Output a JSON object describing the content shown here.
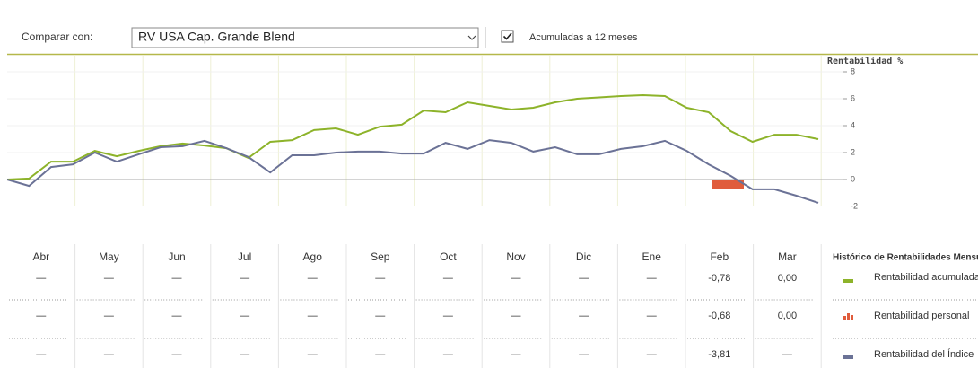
{
  "controls": {
    "compare_label": "Comparar con:",
    "select_value": "RV USA Cap. Grande Blend",
    "checkbox_checked": true,
    "checkbox_label": "Acumuladas a 12 meses"
  },
  "chart_data": {
    "type": "line",
    "y_axis_label": "Rentabilidad %",
    "ylim": [
      -2,
      8
    ],
    "yticks": [
      8,
      6,
      4,
      2,
      0,
      -2
    ],
    "grid": true,
    "series": [
      {
        "name": "Rentabilidad acumulada",
        "color": "#8db32a",
        "values": [
          0,
          0.07,
          1.33,
          1.33,
          2.13,
          1.73,
          2.13,
          2.47,
          2.67,
          2.53,
          2.33,
          1.6,
          2.8,
          2.93,
          3.67,
          3.8,
          3.33,
          3.93,
          4.07,
          5.13,
          5.0,
          5.73,
          5.47,
          5.2,
          5.33,
          5.73,
          6.0,
          6.1,
          6.2,
          6.27,
          6.2,
          5.33,
          5.0,
          3.6,
          2.8,
          3.33,
          3.33,
          3.0
        ]
      },
      {
        "name": "Rentabilidad del Índice",
        "color": "#6b7296",
        "values": [
          0,
          -0.47,
          0.93,
          1.13,
          2.0,
          1.33,
          1.87,
          2.4,
          2.47,
          2.87,
          2.33,
          1.67,
          0.53,
          1.8,
          1.8,
          2.0,
          2.07,
          2.07,
          1.93,
          1.93,
          2.73,
          2.27,
          2.93,
          2.73,
          2.07,
          2.4,
          1.87,
          1.87,
          2.27,
          2.47,
          2.87,
          2.13,
          1.13,
          0.27,
          -0.73,
          -0.73,
          -1.2,
          -1.73
        ]
      }
    ],
    "bar": {
      "name": "Rentabilidad personal",
      "color": "#e05c3c",
      "value": -0.68
    }
  },
  "table": {
    "months": [
      "Abr",
      "May",
      "Jun",
      "Jul",
      "Ago",
      "Sep",
      "Oct",
      "Nov",
      "Dic",
      "Ene",
      "Feb",
      "Mar"
    ],
    "rows": [
      [
        "—",
        "—",
        "—",
        "—",
        "—",
        "—",
        "—",
        "—",
        "—",
        "—",
        "-0,78",
        "0,00"
      ],
      [
        "—",
        "—",
        "—",
        "—",
        "—",
        "—",
        "—",
        "—",
        "—",
        "—",
        "-0,68",
        "0,00"
      ],
      [
        "—",
        "—",
        "—",
        "—",
        "—",
        "—",
        "—",
        "—",
        "—",
        "—",
        "-3,81",
        "—"
      ]
    ],
    "legend_title": "Histórico de Rentabilidades Mensuales"
  }
}
